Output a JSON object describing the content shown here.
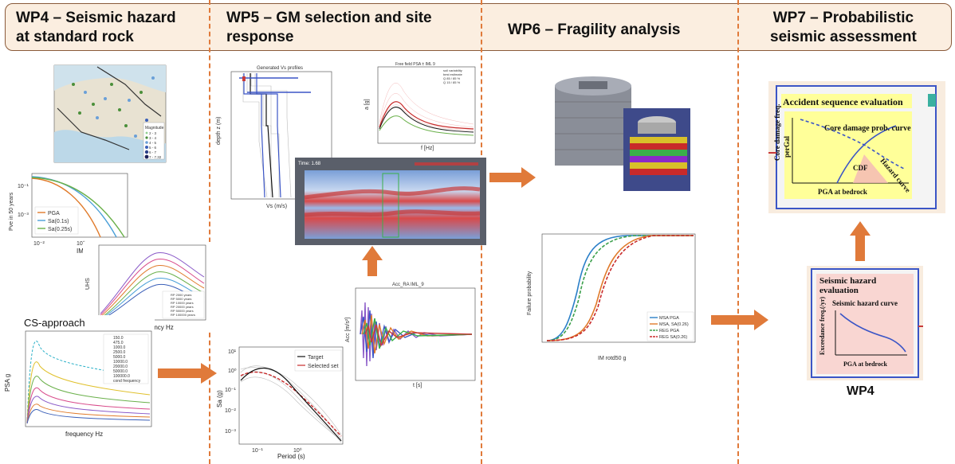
{
  "headers": {
    "wp4": {
      "line1": "WP4 – Seismic hazard",
      "line2": "at standard rock"
    },
    "wp5": {
      "line1": "WP5 – GM selection and site",
      "line2": "response"
    },
    "wp6": {
      "line1": "WP6 – Fragility analysis"
    },
    "wp7": {
      "line1": "WP7 – Probabilistic",
      "line2": "seismic assessment"
    }
  },
  "wp4": {
    "map_legend_title": "Magnitude",
    "map_legend_items": [
      "2 - 3",
      "3 - 4",
      "4 - 5",
      "5 - 6",
      "6 - 7",
      "7 - 7.32"
    ],
    "hazard_ylabel": "Pve in 50 years",
    "hazard_xlabel": "IM [",
    "hazard_legend": [
      "PGA",
      "Sa(0.1s)",
      "Sa(0.25s)"
    ],
    "uhs_ylabel": "UHS",
    "uhs_xlabel": "Frequency Hz",
    "uhs_legend": [
      "RP 2000 years",
      "RP 5000 years",
      "RP 10000 years",
      "RP 20000 years",
      "RP 50000 years",
      "RP 100000 years"
    ],
    "cs_title": "CS-approach",
    "cs_ylabel": "PSA g",
    "cs_xlabel": "frequency Hz",
    "cs_legend": [
      "150.0",
      "475.0",
      "1000.0",
      "2500.0",
      "5000.0",
      "10000.0",
      "20000.0",
      "50000.0",
      "100000.0",
      "cond frequency"
    ]
  },
  "wp5": {
    "vs_title": "Generated Vs profiles",
    "vs_ylabel": "depth z (m)",
    "vs_xlabel": "Vs (m/s)",
    "pga_title": "Free field PSA ± IML 9",
    "pga_ylabel": "a [g]",
    "pga_xlabel": "f [Hz]",
    "pga_legend": [
      "soil variability",
      "best estimate",
      "Q 85 / 85 %",
      "Q 15 / 85 %"
    ],
    "sim_time": "Time: 1.68",
    "acc_title": "Acc_RA IML_9",
    "acc_ylabel": "Acc [m/s²]",
    "acc_xlabel": "t [s]",
    "sa_ylabel": "Sa (g)",
    "sa_xlabel": "Period (s)",
    "sa_legend": [
      "Target",
      "Selected set"
    ]
  },
  "wp6": {
    "frag_ylabel": "Failure probability",
    "frag_xlabel": "IM rotd50 g",
    "frag_legend": [
      "MSA PGA",
      "MSA, SA(0.26)",
      "REG PGA",
      "REG SA(0.26)"
    ]
  },
  "wp7": {
    "acc_box_title": "Accident sequence evaluation",
    "core_damage_freq": "Core damage freq.",
    "per_gal": "perGal",
    "core_damage_prob": "Core damage prob. curve",
    "hazard_curve": "Hazard curve",
    "cdf": "CDF",
    "pga_bedrock": "PGA at bedrock",
    "sh_box_title1": "Seismic hazard",
    "sh_box_title2": "evaluation",
    "sh_curve": "Seismic hazard curve",
    "exceed_freq": "Exceedance freq.(/yr)",
    "pga_bedrock2": "PGA at bedrock",
    "wp4_label": "WP4"
  },
  "colors": {
    "accent": "#e07a3a",
    "header_bg": "#fbeee0",
    "yellow": "#ffff99",
    "pink": "#f9d6d2",
    "blue": "#3b55c6"
  }
}
